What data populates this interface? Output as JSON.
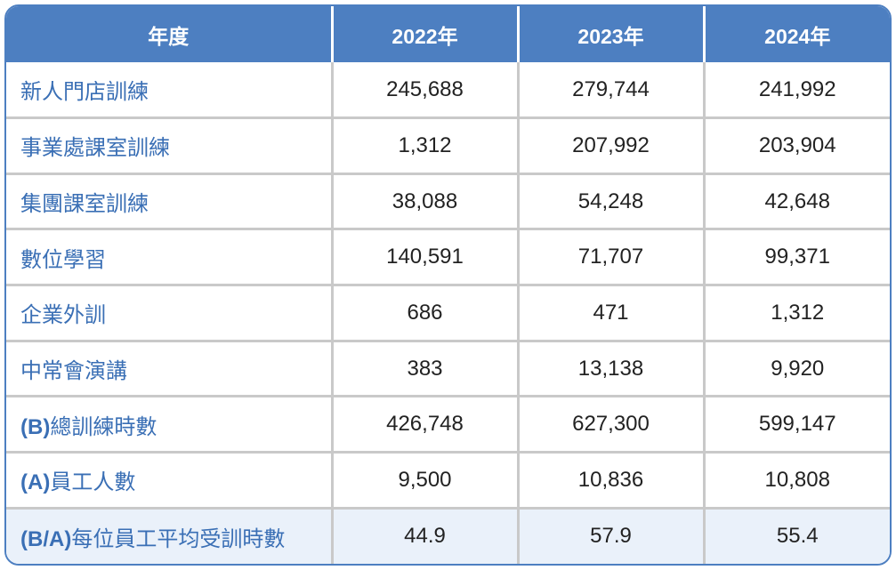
{
  "header": {
    "label": "年度",
    "years": [
      "2022年",
      "2023年",
      "2024年"
    ]
  },
  "rows": [
    {
      "label": "新人門店訓練",
      "values": [
        "245,688",
        "279,744",
        "241,992"
      ]
    },
    {
      "label": "事業處課室訓練",
      "values": [
        "1,312",
        "207,992",
        "203,904"
      ]
    },
    {
      "label": "集團課室訓練",
      "values": [
        "38,088",
        "54,248",
        "42,648"
      ]
    },
    {
      "label": "數位學習",
      "values": [
        "140,591",
        "71,707",
        "99,371"
      ]
    },
    {
      "label": "企業外訓",
      "values": [
        "686",
        "471",
        "1,312"
      ]
    },
    {
      "label": "中常會演講",
      "values": [
        "383",
        "13,138",
        "9,920"
      ]
    },
    {
      "label_prefix": "(B)",
      "label_text": "總訓練時數",
      "values": [
        "426,748",
        "627,300",
        "599,147"
      ]
    },
    {
      "label_prefix": "(A)",
      "label_text": "員工人數",
      "values": [
        "9,500",
        "10,836",
        "10,808"
      ]
    },
    {
      "label_prefix": "(B/A)",
      "label_text": "每位員工平均受訓時數",
      "values": [
        "44.9",
        "57.9",
        "55.4"
      ]
    }
  ],
  "colors": {
    "header_bg": "#4d7fc1",
    "label_text": "#3a6fb5",
    "highlight_row_bg": "#eaf1fa"
  }
}
